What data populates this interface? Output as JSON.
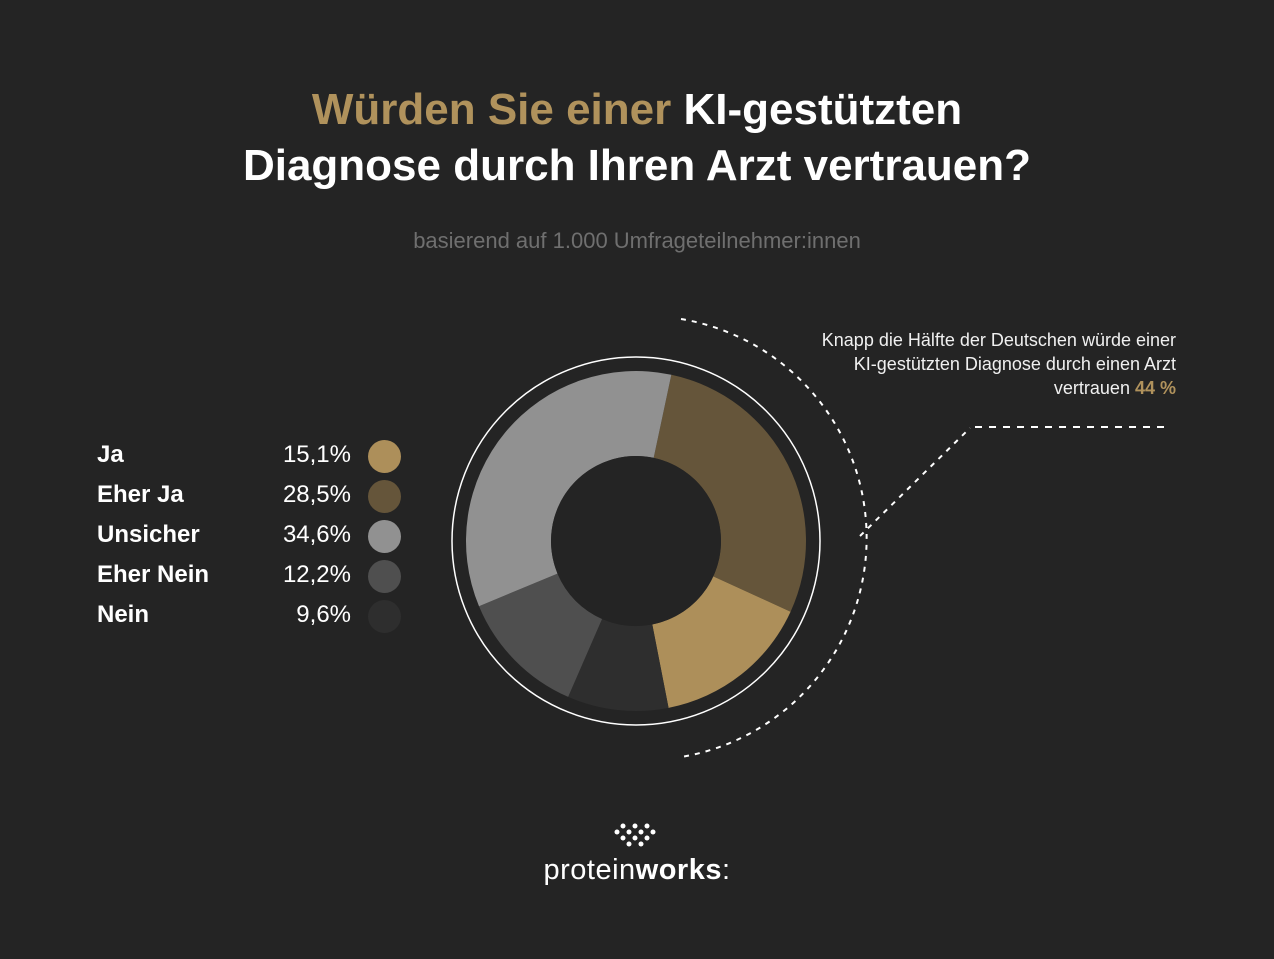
{
  "title": {
    "part1": "Würden Sie einer",
    "part2": "KI-gestützten",
    "line2": "Diagnose durch Ihren Arzt vertrauen?"
  },
  "subtitle": "basierend auf 1.000 Umfrageteilnehmer:innen",
  "annotation": {
    "text": "Knapp die Hälfte der Deutschen würde einer KI-gestützten Diagnose durch einen Arzt vertrauen",
    "highlight": "44 %"
  },
  "logo": {
    "part1": "protein",
    "part2": "works",
    "part3": ":"
  },
  "chart_data": {
    "type": "pie",
    "donut": true,
    "title": "",
    "categories": [
      "Ja",
      "Eher Ja",
      "Unsicher",
      "Eher Nein",
      "Nein"
    ],
    "labels": [
      "15,1%",
      "28,5%",
      "34,6%",
      "12,2%",
      "9,6%"
    ],
    "values": [
      15.1,
      28.5,
      34.6,
      12.2,
      9.6
    ],
    "colors": [
      "#ad8f5a",
      "#65553a",
      "#919191",
      "#4f4f4f",
      "#2e2e2e"
    ],
    "legend": "left"
  }
}
